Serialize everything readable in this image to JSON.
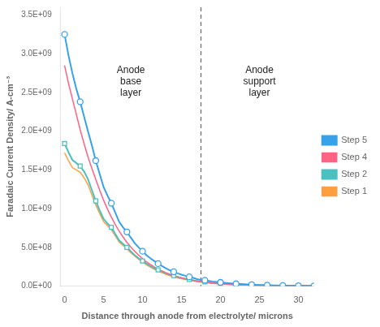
{
  "chart_data": {
    "type": "line",
    "xlabel": "Distance through anode from electrolyte/ microns",
    "ylabel": "Faradaic Current Density/ A-cm⁻³",
    "xlim": [
      -0.5,
      32
    ],
    "ylim": [
      0,
      3600000000.0
    ],
    "xticks": [
      0,
      5,
      10,
      15,
      20,
      25,
      30
    ],
    "yticks": [
      {
        "value": 0,
        "label": "0.0E+00"
      },
      {
        "value": 500000000.0,
        "label": "5.0E+08"
      },
      {
        "value": 1000000000.0,
        "label": "1.0E+09"
      },
      {
        "value": 1500000000.0,
        "label": "1.5E+09"
      },
      {
        "value": 2000000000.0,
        "label": "2.0E+09"
      },
      {
        "value": 2500000000.0,
        "label": "2.5E+09"
      },
      {
        "value": 3000000000.0,
        "label": "3.0E+09"
      },
      {
        "value": 3500000000.0,
        "label": "3.5E+09"
      }
    ],
    "grid": false,
    "legend": "right",
    "vlines": [
      {
        "x": 17.5,
        "line_style": "dashed"
      }
    ],
    "annotations": [
      {
        "text": "Anode\nbase\nlayer",
        "x": 8.5,
        "y": 2850000000.0
      },
      {
        "text": "Anode\nsupport\nlayer",
        "x": 25,
        "y": 2850000000.0
      }
    ],
    "series": [
      {
        "name": "Step 5",
        "marker": "circle",
        "x": [
          0,
          0.5,
          1,
          1.5,
          2,
          2.5,
          3,
          3.5,
          4,
          4.5,
          5,
          5.5,
          6,
          6.5,
          7,
          7.5,
          8,
          8.5,
          9,
          9.5,
          10,
          10.5,
          11,
          11.5,
          12,
          12.5,
          13,
          13.5,
          14,
          14.5,
          15,
          15.5,
          16,
          16.5,
          17,
          17.5,
          18,
          19,
          20,
          21,
          22,
          23,
          24,
          25,
          26,
          27,
          28,
          29,
          30,
          31,
          32
        ],
        "values": [
          3250000000.0,
          2980000000.0,
          2750000000.0,
          2550000000.0,
          2380000000.0,
          2190000000.0,
          2000000000.0,
          1820000000.0,
          1620000000.0,
          1450000000.0,
          1280000000.0,
          1170000000.0,
          1070000000.0,
          950000000.0,
          830000000.0,
          760000000.0,
          700000000.0,
          625000000.0,
          555000000.0,
          500000000.0,
          450000000.0,
          400000000.0,
          360000000.0,
          325000000.0,
          290000000.0,
          260000000.0,
          230000000.0,
          205000000.0,
          185000000.0,
          165000000.0,
          148000000.0,
          133000000.0,
          120000000.0,
          105000000.0,
          90000000.0,
          80000000.0,
          75000000.0,
          60000000.0,
          48000000.0,
          38000000.0,
          30000000.0,
          24000000.0,
          19000000.0,
          15000000.0,
          12000000.0,
          9500000.0,
          7500000.0,
          6000000.0,
          4800000.0,
          3800000.0,
          3000000.0
        ],
        "marker_x": [
          0,
          2,
          4,
          6,
          8,
          10,
          12,
          14,
          16,
          18,
          20,
          22,
          24,
          26,
          28,
          30,
          32
        ],
        "marker_values": [
          3250000000.0,
          2380000000.0,
          1620000000.0,
          1070000000.0,
          700000000.0,
          450000000.0,
          290000000.0,
          185000000.0,
          120000000.0,
          75000000.0,
          48000000.0,
          30000000.0,
          19000000.0,
          12000000.0,
          7500000.0,
          4800000.0,
          3000000.0
        ]
      },
      {
        "name": "Step 4",
        "x": [
          0,
          0.5,
          1,
          1.5,
          2,
          2.5,
          3,
          3.5,
          4,
          4.5,
          5,
          5.5,
          6,
          6.5,
          7,
          7.5,
          8,
          8.5,
          9,
          9.5,
          10,
          10.5,
          11,
          11.5,
          12,
          12.5,
          13,
          13.5,
          14,
          14.5,
          15,
          15.5,
          16,
          16.5,
          17,
          17.5,
          18,
          19,
          20,
          21,
          22,
          23,
          24,
          25,
          26,
          27,
          28,
          29,
          30,
          31,
          32
        ],
        "values": [
          2850000000.0,
          2620000000.0,
          2420000000.0,
          2220000000.0,
          2020000000.0,
          1840000000.0,
          1670000000.0,
          1520000000.0,
          1380000000.0,
          1240000000.0,
          1110000000.0,
          995000000.0,
          890000000.0,
          795000000.0,
          710000000.0,
          635000000.0,
          565000000.0,
          505000000.0,
          450000000.0,
          400000000.0,
          355000000.0,
          315000000.0,
          280000000.0,
          248000000.0,
          220000000.0,
          195000000.0,
          173000000.0,
          153000000.0,
          136000000.0,
          120000000.0,
          107000000.0,
          95000000.0,
          84000000.0,
          74500000.0,
          66000000.0,
          58500000.0,
          52000000.0,
          41000000.0,
          32500000.0,
          25700000.0,
          20400000.0,
          16200000.0,
          12800000.0,
          10200000.0,
          8100000.0,
          6400000.0,
          5100000.0,
          4000000.0,
          3200000.0,
          2500000.0,
          2000000.0
        ]
      },
      {
        "name": "Step 2",
        "marker": "square",
        "x": [
          0,
          0.5,
          1,
          1.5,
          2,
          2.5,
          3,
          3.5,
          4,
          4.5,
          5,
          5.5,
          6,
          6.5,
          7,
          7.5,
          8,
          8.5,
          9,
          9.5,
          10,
          10.5,
          11,
          11.5,
          12,
          12.5,
          13,
          13.5,
          14,
          14.5,
          15,
          15.5,
          16,
          16.5,
          17,
          17.5,
          18,
          19,
          20,
          21,
          22,
          23,
          24,
          25,
          26,
          27,
          28,
          29,
          30,
          31,
          32
        ],
        "values": [
          1840000000.0,
          1730000000.0,
          1630000000.0,
          1590000000.0,
          1550000000.0,
          1480000000.0,
          1380000000.0,
          1240000000.0,
          1100000000.0,
          980000000.0,
          870000000.0,
          810000000.0,
          760000000.0,
          675000000.0,
          590000000.0,
          545000000.0,
          500000000.0,
          450000000.0,
          400000000.0,
          360000000.0,
          325000000.0,
          290000000.0,
          260000000.0,
          230000000.0,
          210000000.0,
          186000000.0,
          165000000.0,
          148000000.0,
          135000000.0,
          118000000.0,
          104000000.0,
          93000000.0,
          85000000.0,
          75000000.0,
          65000000.0,
          59500000.0,
          55000000.0,
          43000000.0,
          35000000.0,
          27500000.0,
          22000000.0,
          17200000.0,
          14000000.0,
          11000000.0,
          9000000.0,
          7000000.0,
          5700000.0,
          4500000.0,
          3600000.0,
          2800000.0,
          2300000.0
        ],
        "marker_x": [
          0,
          2,
          4,
          6,
          8,
          10,
          12,
          14,
          16,
          18,
          20,
          22,
          24,
          26,
          28,
          30,
          32
        ],
        "marker_values": [
          1840000000.0,
          1550000000.0,
          1100000000.0,
          760000000.0,
          500000000.0,
          325000000.0,
          210000000.0,
          135000000.0,
          85000000.0,
          55000000.0,
          35000000.0,
          22000000.0,
          14000000.0,
          9000000.0,
          5700000.0,
          3600000.0,
          2300000.0
        ]
      },
      {
        "name": "Step 1",
        "x": [
          0,
          0.5,
          1,
          1.5,
          2,
          2.5,
          3,
          3.5,
          4,
          4.5,
          5,
          5.5,
          6,
          6.5,
          7,
          7.5,
          8,
          8.5,
          9,
          9.5,
          10,
          10.5,
          11,
          11.5,
          12,
          12.5,
          13,
          13.5,
          14,
          14.5,
          15,
          15.5,
          16,
          16.5,
          17,
          17.5,
          18,
          19,
          20,
          21,
          22,
          23,
          24,
          25,
          26,
          27,
          28,
          29,
          30,
          31,
          32
        ],
        "values": [
          1720000000.0,
          1620000000.0,
          1530000000.0,
          1500000000.0,
          1470000000.0,
          1400000000.0,
          1310000000.0,
          1180000000.0,
          1050000000.0,
          940000000.0,
          835000000.0,
          780000000.0,
          730000000.0,
          650000000.0,
          570000000.0,
          525000000.0,
          480000000.0,
          432000000.0,
          388000000.0,
          348000000.0,
          310000000.0,
          276000000.0,
          246000000.0,
          218000000.0,
          195000000.0,
          173000000.0,
          153000000.0,
          135000000.0,
          120000000.0,
          106000000.0,
          94000000.0,
          83500000.0,
          74000000.0,
          65500000.0,
          58000000.0,
          51500000.0,
          46000000.0,
          36000000.0,
          28500000.0,
          22500000.0,
          17800000.0,
          14000000.0,
          11200000.0,
          8800000.0,
          7000000.0,
          5500000.0,
          4350000.0,
          3450000.0,
          2700000.0,
          2150000.0,
          1700000.0
        ]
      }
    ]
  }
}
